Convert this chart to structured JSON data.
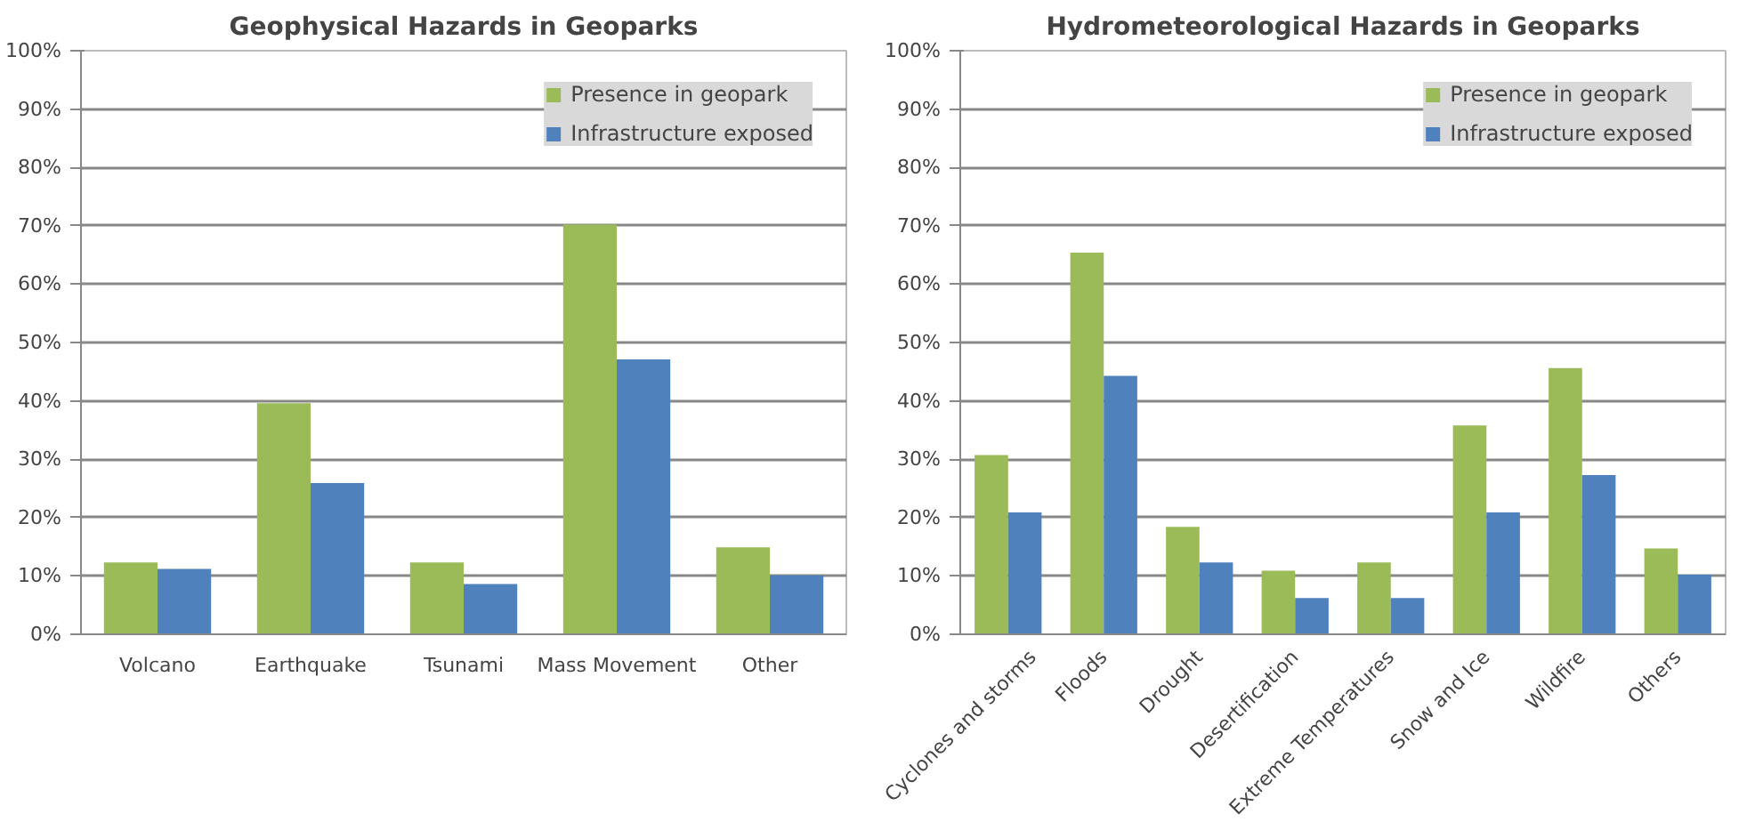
{
  "chart_data": [
    {
      "type": "bar",
      "title": "Geophysical Hazards in Geoparks",
      "categories": [
        "Volcano",
        "Earthquake",
        "Tsunami",
        "Mass Movement",
        "Other"
      ],
      "series": [
        {
          "name": "Presence in geopark",
          "color": "#9bbb59",
          "values": [
            12.3,
            39.6,
            12.3,
            70.2,
            14.9
          ]
        },
        {
          "name": "Infrastructure exposed",
          "color": "#4f81bd",
          "values": [
            11.2,
            25.9,
            8.6,
            47.1,
            10.1
          ]
        }
      ],
      "ylim": [
        0,
        100
      ],
      "yticks": [
        {
          "value": 0,
          "label": "0%"
        },
        {
          "value": 10,
          "label": "10%"
        },
        {
          "value": 20,
          "label": "20%"
        },
        {
          "value": 30,
          "label": "30%"
        },
        {
          "value": 40,
          "label": "40%"
        },
        {
          "value": 50,
          "label": "50%"
        },
        {
          "value": 60,
          "label": "60%"
        },
        {
          "value": 70,
          "label": "70%"
        },
        {
          "value": 80,
          "label": "80%"
        },
        {
          "value": 90,
          "label": "90%"
        },
        {
          "value": 100,
          "label": "100%"
        }
      ],
      "grid": "y",
      "legend": "top right"
    },
    {
      "type": "bar",
      "title": "Hydrometeorological Hazards in Geoparks",
      "categories": [
        "Cyclones and storms",
        "Floods",
        "Drought",
        "Desertification",
        "Extreme Temperatures",
        "Snow and Ice",
        "Wildfire",
        "Others"
      ],
      "series": [
        {
          "name": "Presence in geopark",
          "color": "#9bbb59",
          "values": [
            30.7,
            65.4,
            18.4,
            10.9,
            12.3,
            35.8,
            45.6,
            14.7
          ]
        },
        {
          "name": "Infrastructure exposed",
          "color": "#4f81bd",
          "values": [
            20.9,
            44.3,
            12.3,
            6.2,
            6.2,
            20.9,
            27.3,
            10.2
          ]
        }
      ],
      "ylim": [
        0,
        100
      ],
      "yticks": [
        {
          "value": 0,
          "label": "0%"
        },
        {
          "value": 10,
          "label": "10%"
        },
        {
          "value": 20,
          "label": "20%"
        },
        {
          "value": 30,
          "label": "30%"
        },
        {
          "value": 40,
          "label": "40%"
        },
        {
          "value": 50,
          "label": "50%"
        },
        {
          "value": 60,
          "label": "60%"
        },
        {
          "value": 70,
          "label": "70%"
        },
        {
          "value": 80,
          "label": "80%"
        },
        {
          "value": 90,
          "label": "90%"
        },
        {
          "value": 100,
          "label": "100%"
        }
      ],
      "grid": "y",
      "legend": "top right"
    }
  ]
}
